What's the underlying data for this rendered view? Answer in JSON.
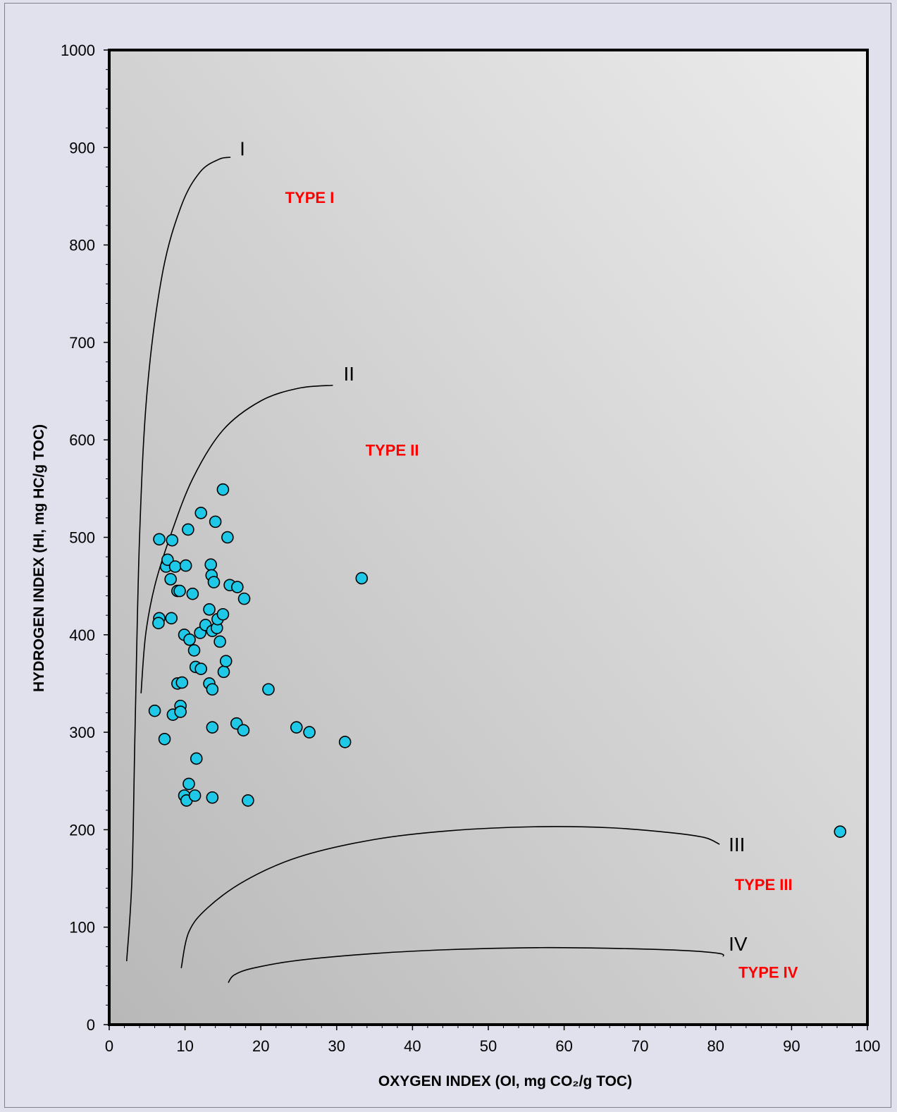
{
  "chart_data": {
    "type": "scatter",
    "title": "",
    "xlabel": "OXYGEN INDEX (OI, mg CO₂/g TOC)",
    "ylabel": "HYDROGEN INDEX (HI, mg HC/g TOC)",
    "xlim": [
      0,
      100
    ],
    "ylim": [
      0,
      1000
    ],
    "x_ticks": [
      0,
      10,
      20,
      30,
      40,
      50,
      60,
      70,
      80,
      90,
      100
    ],
    "y_ticks": [
      0,
      100,
      200,
      300,
      400,
      500,
      600,
      700,
      800,
      900,
      1000
    ],
    "grid": false,
    "legend": "none",
    "colors": {
      "marker_fill": "#1ec8e6",
      "marker_edge": "#000000",
      "region_label": "#ff0000",
      "plot_bg_light": "#ececec",
      "plot_bg_dark": "#b8b8b8",
      "page_bg": "#e1e1ee"
    },
    "series": [
      {
        "points": [
          [
            6.0,
            322
          ],
          [
            6.6,
            498
          ],
          [
            6.6,
            417
          ],
          [
            6.5,
            412
          ],
          [
            7.3,
            293
          ],
          [
            7.5,
            470
          ],
          [
            7.7,
            477
          ],
          [
            8.1,
            457
          ],
          [
            8.2,
            417
          ],
          [
            8.3,
            497
          ],
          [
            8.4,
            318
          ],
          [
            8.7,
            470
          ],
          [
            9.0,
            445
          ],
          [
            9.0,
            350
          ],
          [
            9.3,
            445
          ],
          [
            9.4,
            327
          ],
          [
            9.4,
            321
          ],
          [
            9.6,
            351
          ],
          [
            9.9,
            400
          ],
          [
            9.9,
            235
          ],
          [
            10.1,
            471
          ],
          [
            10.2,
            230
          ],
          [
            10.4,
            508
          ],
          [
            10.5,
            247
          ],
          [
            10.6,
            395
          ],
          [
            11.0,
            442
          ],
          [
            11.2,
            384
          ],
          [
            11.3,
            235
          ],
          [
            11.4,
            367
          ],
          [
            11.5,
            273
          ],
          [
            12.0,
            402
          ],
          [
            12.1,
            365
          ],
          [
            12.1,
            525
          ],
          [
            12.7,
            410
          ],
          [
            13.2,
            426
          ],
          [
            13.2,
            350
          ],
          [
            13.4,
            472
          ],
          [
            13.5,
            461
          ],
          [
            13.6,
            404
          ],
          [
            13.6,
            344
          ],
          [
            13.6,
            305
          ],
          [
            13.6,
            233
          ],
          [
            13.8,
            454
          ],
          [
            14.0,
            516
          ],
          [
            14.2,
            407
          ],
          [
            14.3,
            416
          ],
          [
            14.6,
            393
          ],
          [
            15.0,
            549
          ],
          [
            15.0,
            421
          ],
          [
            15.1,
            362
          ],
          [
            15.4,
            373
          ],
          [
            15.6,
            500
          ],
          [
            15.9,
            451
          ],
          [
            16.8,
            309
          ],
          [
            16.9,
            449
          ],
          [
            17.7,
            302
          ],
          [
            17.8,
            437
          ],
          [
            18.3,
            230
          ],
          [
            21.0,
            344
          ],
          [
            24.7,
            305
          ],
          [
            26.4,
            300
          ],
          [
            31.1,
            290
          ],
          [
            33.3,
            458
          ],
          [
            96.4,
            198
          ]
        ]
      }
    ],
    "reference_curves": [
      {
        "label": "I",
        "points": [
          [
            2.3,
            65
          ],
          [
            3.0,
            150
          ],
          [
            3.4,
            300
          ],
          [
            4.0,
            500
          ],
          [
            5.0,
            650
          ],
          [
            7.0,
            770
          ],
          [
            9.5,
            840
          ],
          [
            12.0,
            875
          ],
          [
            14.5,
            888
          ],
          [
            16.0,
            890
          ]
        ]
      },
      {
        "label": "II",
        "points": [
          [
            4.2,
            340
          ],
          [
            4.8,
            400
          ],
          [
            6.0,
            450
          ],
          [
            8.0,
            500
          ],
          [
            11.0,
            560
          ],
          [
            15.0,
            610
          ],
          [
            20.0,
            640
          ],
          [
            25.0,
            653
          ],
          [
            29.5,
            656
          ]
        ]
      },
      {
        "label": "III",
        "points": [
          [
            9.5,
            58
          ],
          [
            10.5,
            95
          ],
          [
            13.0,
            120
          ],
          [
            18.0,
            148
          ],
          [
            25.0,
            172
          ],
          [
            35.0,
            190
          ],
          [
            45.0,
            199
          ],
          [
            56.0,
            203
          ],
          [
            66.0,
            202
          ],
          [
            74.0,
            197
          ],
          [
            78.5,
            192
          ],
          [
            80.5,
            185
          ]
        ]
      },
      {
        "label": "IV",
        "points": [
          [
            15.7,
            43
          ],
          [
            16.5,
            51
          ],
          [
            19.0,
            58
          ],
          [
            25.0,
            66
          ],
          [
            35.0,
            73
          ],
          [
            45.0,
            77
          ],
          [
            57.0,
            79
          ],
          [
            68.0,
            78
          ],
          [
            76.0,
            76
          ],
          [
            80.5,
            73
          ],
          [
            81.0,
            70
          ]
        ]
      }
    ],
    "annotations": [
      {
        "text": "I",
        "x": 17.2,
        "y": 892,
        "style": "curve"
      },
      {
        "text": "II",
        "x": 30.9,
        "y": 661,
        "style": "curve"
      },
      {
        "text": "III",
        "x": 81.7,
        "y": 178,
        "style": "curve"
      },
      {
        "text": "IV",
        "x": 81.7,
        "y": 76,
        "style": "curve"
      },
      {
        "text": "TYPE I",
        "x": 23.2,
        "y": 843,
        "style": "region"
      },
      {
        "text": "TYPE II",
        "x": 33.8,
        "y": 584,
        "style": "region"
      },
      {
        "text": "TYPE III",
        "x": 82.5,
        "y": 138,
        "style": "region"
      },
      {
        "text": "TYPE IV",
        "x": 83.0,
        "y": 48,
        "style": "region"
      }
    ]
  }
}
